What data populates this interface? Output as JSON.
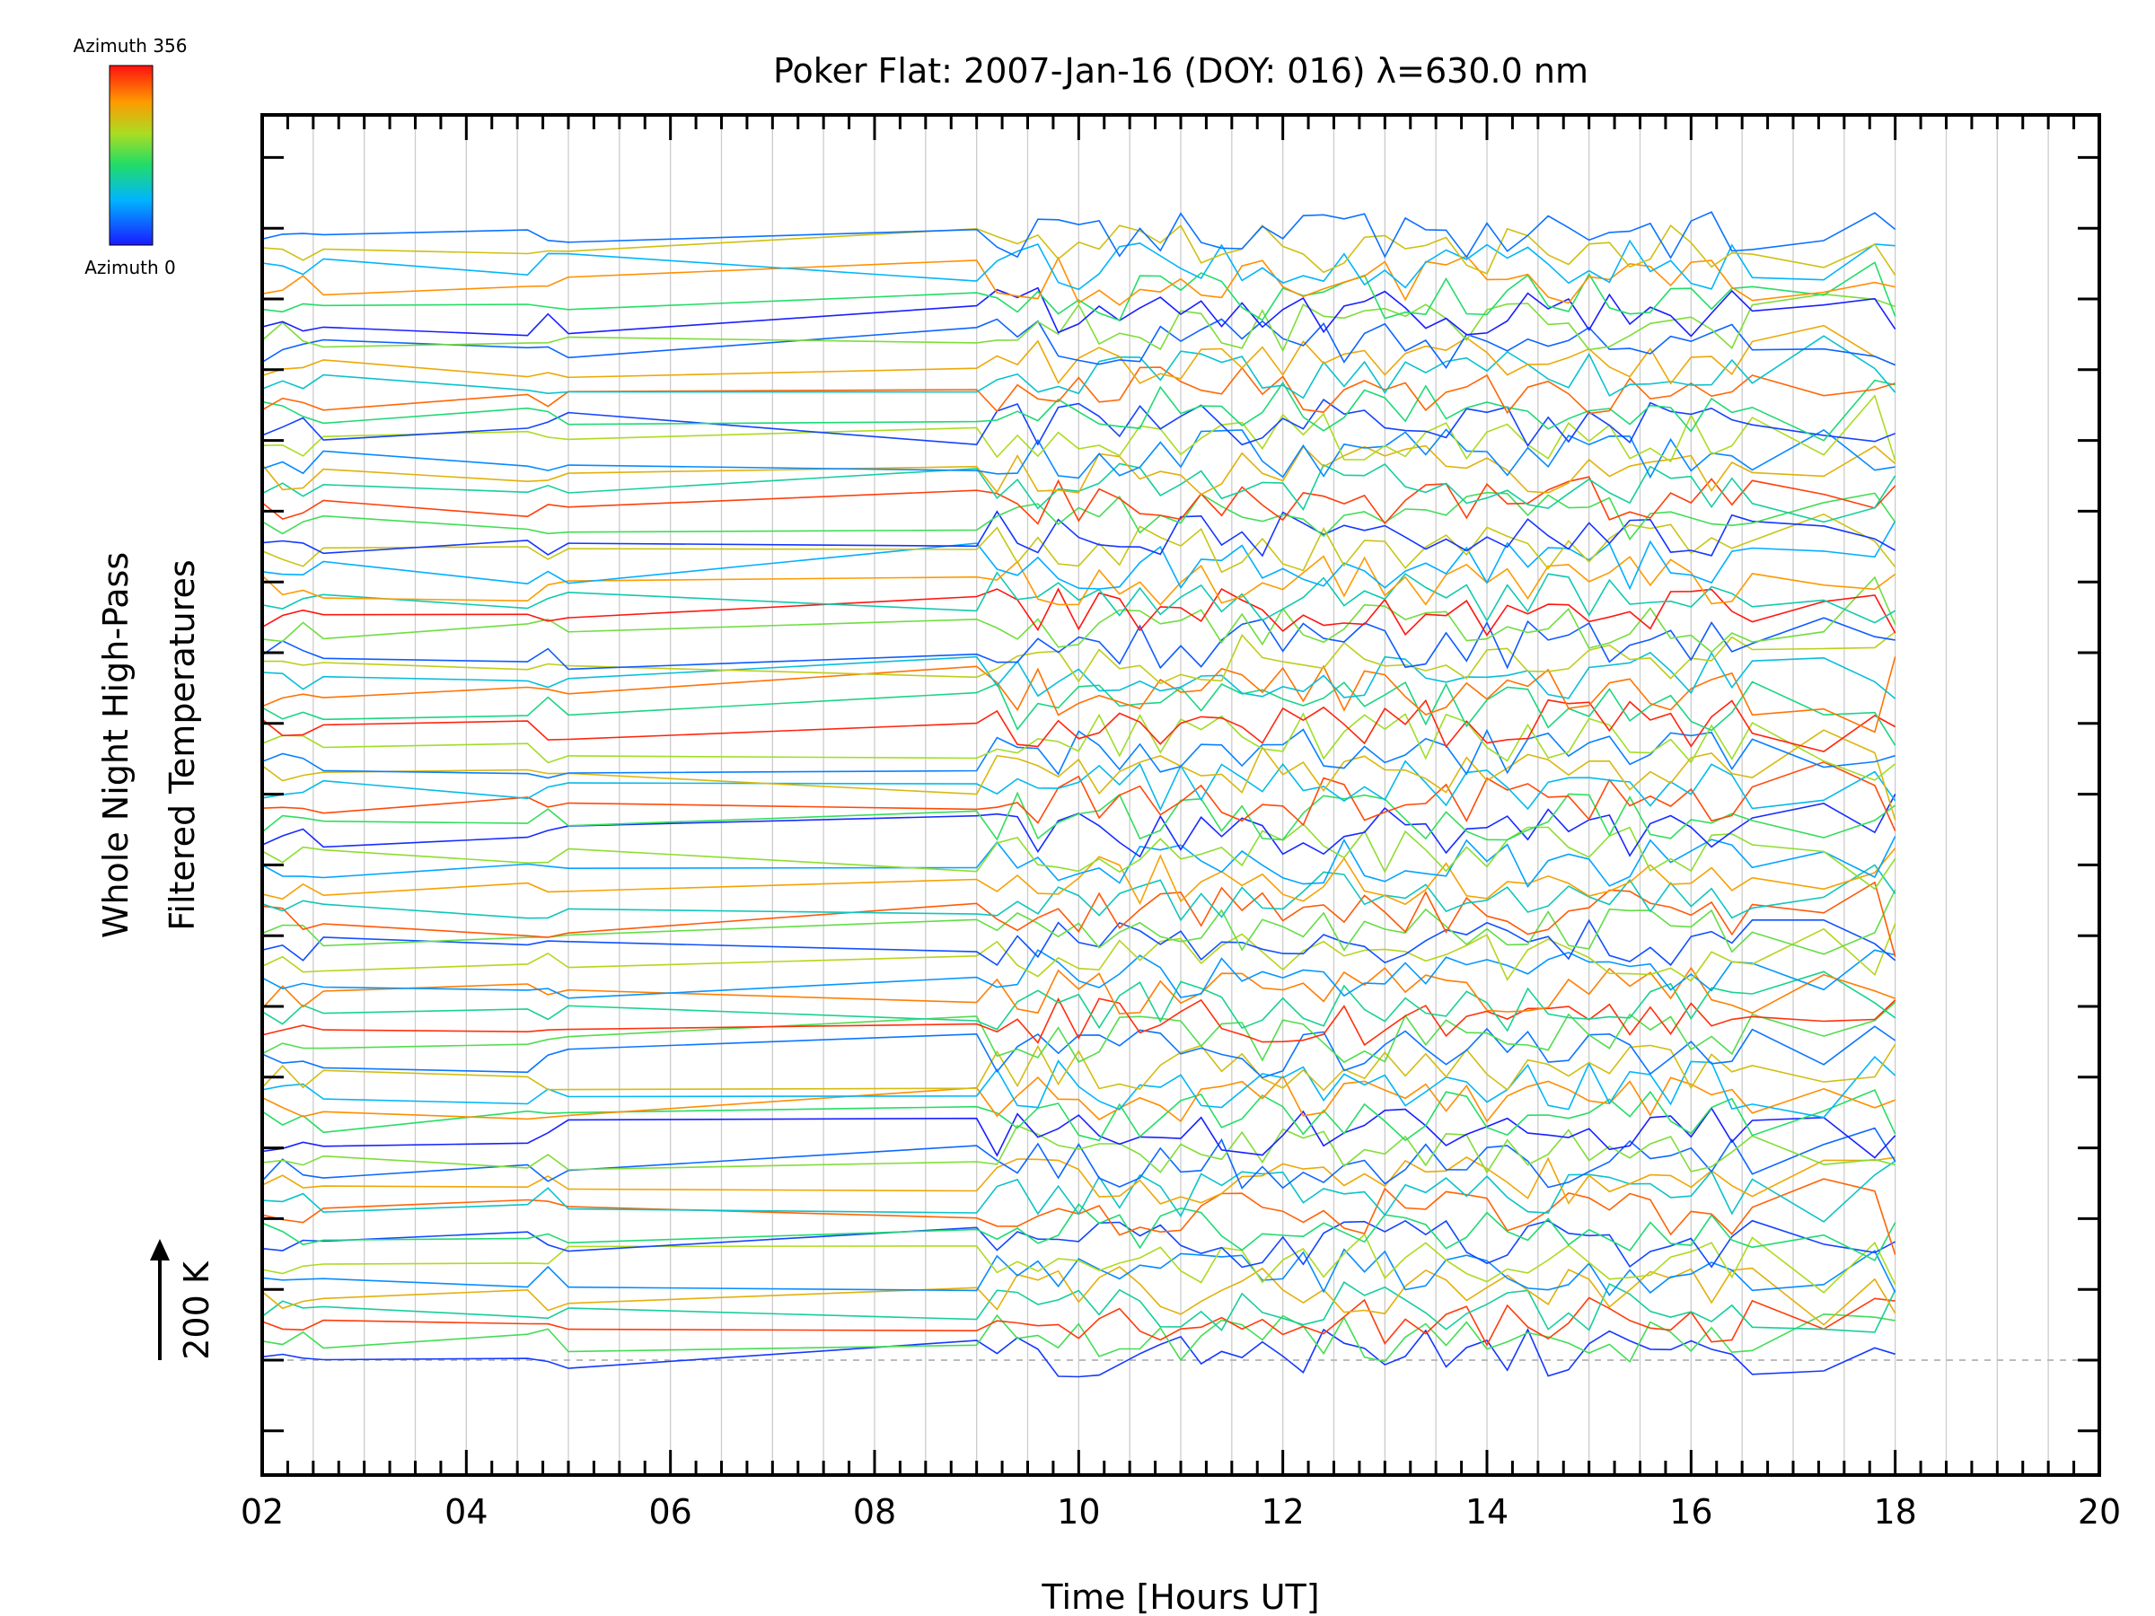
{
  "chart_data": {
    "type": "line",
    "title": "Poker Flat: 2007-Jan-16 (DOY: 016) λ=630.0 nm",
    "xlabel": "Time [Hours UT]",
    "ylabel_line1": "Whole Night High-Pass",
    "ylabel_line2": "Filtered Temperatures",
    "scale_label": "200 K",
    "scale_arrow": "↑",
    "xlim": [
      2,
      20
    ],
    "x_ticks": [
      2,
      4,
      6,
      8,
      10,
      12,
      14,
      16,
      18,
      20
    ],
    "x_tick_labels": [
      "02",
      "04",
      "06",
      "08",
      "10",
      "12",
      "14",
      "16",
      "18",
      "20"
    ],
    "y_baseline_label": "dashed baseline at lowest trace offset",
    "y_offset_step_K": 25,
    "series_count": 72,
    "colorbar": {
      "top_label": "Azimuth 356",
      "bottom_label": "Azimuth 0",
      "colormap": "rainbow (blue at 0 → red at 356)"
    },
    "sample_times_hours": [
      2.0,
      2.2,
      2.4,
      2.6,
      4.6,
      4.8,
      5.0,
      9.0,
      9.2,
      9.4,
      9.6,
      9.8,
      10.0,
      10.2,
      10.4,
      10.6,
      10.8,
      11.0,
      11.2,
      11.4,
      11.6,
      11.8,
      12.0,
      12.2,
      12.4,
      12.6,
      12.8,
      13.0,
      13.2,
      13.4,
      13.6,
      13.8,
      14.0,
      14.2,
      14.4,
      14.6,
      14.8,
      15.0,
      15.2,
      15.4,
      15.6,
      15.8,
      16.0,
      16.2,
      16.4,
      16.6,
      17.3,
      17.8,
      18.0
    ],
    "note": "Each series is one azimuth look direction; traces are vertically offset stacks of high-pass filtered temperature fluctuations",
    "colors": {
      "axis": "#000000",
      "grid": "#cccccc",
      "baseline": "#bbbbbb"
    }
  }
}
